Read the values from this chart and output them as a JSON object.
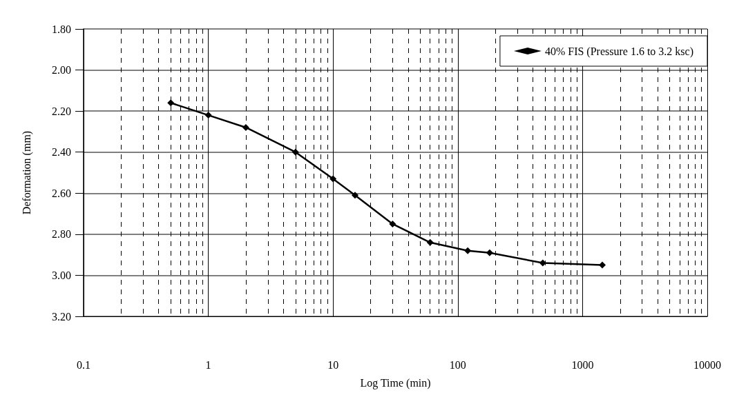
{
  "chart_data": {
    "type": "line",
    "xlabel": "Log Time (min)",
    "ylabel": "Deformation (mm)",
    "log": "x",
    "xlim": [
      0.1,
      10000
    ],
    "xticks": [
      0.1,
      1,
      10,
      100,
      1000,
      10000
    ],
    "ylim": [
      3.2,
      1.8
    ],
    "yticks": [
      {
        "value": 1.8,
        "label": "1.80"
      },
      {
        "value": 2.0,
        "label": "2.00"
      },
      {
        "value": 2.2,
        "label": "2.20"
      },
      {
        "value": 2.4,
        "label": "2.40"
      },
      {
        "value": 2.6,
        "label": "2.60"
      },
      {
        "value": 2.8,
        "label": "2.80"
      },
      {
        "value": 3.0,
        "label": "3.00"
      },
      {
        "value": 3.2,
        "label": "3.20"
      }
    ],
    "x": [
      0.5,
      1,
      2,
      5,
      10,
      15,
      30,
      60,
      120,
      180,
      480,
      1440
    ],
    "series": [
      {
        "name": "40% FIS (Pressure 1.6 to 3.2 ksc)",
        "color": "#000000",
        "values": [
          2.16,
          2.22,
          2.28,
          2.4,
          2.53,
          2.61,
          2.75,
          2.84,
          2.88,
          2.89,
          2.94,
          2.95
        ]
      }
    ],
    "marker": "diamond",
    "line_style": "solid",
    "grid": true,
    "legend": "top right"
  }
}
